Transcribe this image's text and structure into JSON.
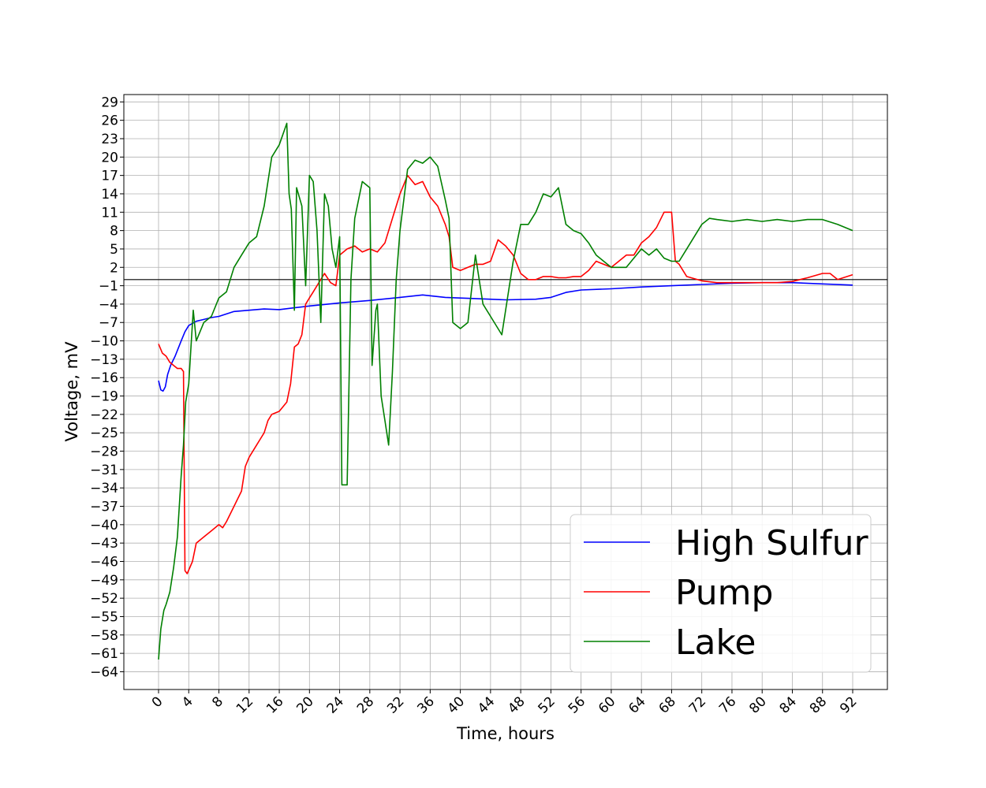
{
  "chart_data": {
    "type": "line",
    "title": "",
    "xlabel": "Time, hours",
    "ylabel": "Voltage, mV",
    "xlim": [
      -4.6,
      96.6
    ],
    "ylim": [
      -66.9,
      30.2
    ],
    "x_ticks": [
      "0",
      "4",
      "8",
      "12",
      "16",
      "20",
      "24",
      "28",
      "32",
      "36",
      "40",
      "44",
      "48",
      "52",
      "56",
      "60",
      "64",
      "68",
      "72",
      "76",
      "80",
      "84",
      "88",
      "92"
    ],
    "y_ticks": [
      "29",
      "26",
      "23",
      "20",
      "17",
      "14",
      "11",
      "8",
      "5",
      "2",
      "−1",
      "−4",
      "−7",
      "−10",
      "−13",
      "−16",
      "−19",
      "−22",
      "−25",
      "−28",
      "−31",
      "−34",
      "−37",
      "−40",
      "−43",
      "−46",
      "−49",
      "−52",
      "−55",
      "−58",
      "−61",
      "−64"
    ],
    "grid": true,
    "reference_line_y": 0,
    "legend": {
      "position": "bottom-right"
    },
    "series": [
      {
        "name": "High Sulfur",
        "color": "#0000ff",
        "points": [
          [
            0,
            -16.5
          ],
          [
            0.3,
            -18
          ],
          [
            0.6,
            -18.2
          ],
          [
            0.9,
            -17.5
          ],
          [
            1.2,
            -15.5
          ],
          [
            1.6,
            -14
          ],
          [
            2.2,
            -12.5
          ],
          [
            3,
            -10
          ],
          [
            3.5,
            -8.5
          ],
          [
            4,
            -7.5
          ],
          [
            5,
            -6.8
          ],
          [
            6,
            -6.5
          ],
          [
            7,
            -6.2
          ],
          [
            8,
            -6
          ],
          [
            9,
            -5.6
          ],
          [
            10,
            -5.2
          ],
          [
            12,
            -5.0
          ],
          [
            14,
            -4.8
          ],
          [
            16,
            -4.9
          ],
          [
            18,
            -4.6
          ],
          [
            20,
            -4.3
          ],
          [
            24,
            -3.8
          ],
          [
            28,
            -3.4
          ],
          [
            32,
            -2.9
          ],
          [
            35,
            -2.5
          ],
          [
            38,
            -2.9
          ],
          [
            42,
            -3.1
          ],
          [
            46,
            -3.3
          ],
          [
            50,
            -3.2
          ],
          [
            52,
            -2.9
          ],
          [
            54,
            -2.1
          ],
          [
            56,
            -1.7
          ],
          [
            60,
            -1.5
          ],
          [
            64,
            -1.2
          ],
          [
            68,
            -1.0
          ],
          [
            72,
            -0.8
          ],
          [
            76,
            -0.6
          ],
          [
            80,
            -0.5
          ],
          [
            84,
            -0.5
          ],
          [
            88,
            -0.7
          ],
          [
            92,
            -0.9
          ]
        ]
      },
      {
        "name": "Pump",
        "color": "#ff0000",
        "points": [
          [
            0,
            -10.5
          ],
          [
            0.5,
            -12
          ],
          [
            1,
            -12.5
          ],
          [
            1.5,
            -13.5
          ],
          [
            2,
            -14
          ],
          [
            2.5,
            -14.5
          ],
          [
            3,
            -14.5
          ],
          [
            3.3,
            -15
          ],
          [
            3.5,
            -47.5
          ],
          [
            3.8,
            -48
          ],
          [
            4.5,
            -46
          ],
          [
            5,
            -43
          ],
          [
            6,
            -42
          ],
          [
            7,
            -41
          ],
          [
            8,
            -40
          ],
          [
            8.5,
            -40.5
          ],
          [
            9,
            -39.5
          ],
          [
            10,
            -37
          ],
          [
            11,
            -34.5
          ],
          [
            11.5,
            -30.5
          ],
          [
            12,
            -29
          ],
          [
            13,
            -27
          ],
          [
            13.5,
            -26
          ],
          [
            14,
            -25
          ],
          [
            14.5,
            -23
          ],
          [
            15,
            -22
          ],
          [
            16,
            -21.5
          ],
          [
            17,
            -20
          ],
          [
            17.5,
            -17
          ],
          [
            18,
            -11
          ],
          [
            18.5,
            -10.5
          ],
          [
            19,
            -9
          ],
          [
            19.5,
            -4
          ],
          [
            20,
            -3
          ],
          [
            20.5,
            -2
          ],
          [
            21,
            -1
          ],
          [
            22,
            1
          ],
          [
            22.8,
            -0.5
          ],
          [
            23.5,
            -1
          ],
          [
            24,
            4
          ],
          [
            25,
            5
          ],
          [
            26,
            5.5
          ],
          [
            27,
            4.5
          ],
          [
            28,
            5
          ],
          [
            29,
            4.5
          ],
          [
            30,
            6
          ],
          [
            31,
            10
          ],
          [
            32,
            14
          ],
          [
            33,
            17
          ],
          [
            34,
            15.5
          ],
          [
            35,
            16
          ],
          [
            36,
            13.5
          ],
          [
            37,
            12
          ],
          [
            38,
            9
          ],
          [
            38.5,
            7
          ],
          [
            39,
            2
          ],
          [
            40,
            1.5
          ],
          [
            41,
            2
          ],
          [
            42,
            2.5
          ],
          [
            43,
            2.5
          ],
          [
            44,
            3
          ],
          [
            45,
            6.5
          ],
          [
            46,
            5.5
          ],
          [
            47,
            4
          ],
          [
            48,
            1
          ],
          [
            49,
            0
          ],
          [
            50,
            0
          ],
          [
            51,
            0.5
          ],
          [
            52,
            0.5
          ],
          [
            53,
            0.3
          ],
          [
            54,
            0.3
          ],
          [
            55,
            0.5
          ],
          [
            56,
            0.5
          ],
          [
            57,
            1.5
          ],
          [
            58,
            3
          ],
          [
            59,
            2.5
          ],
          [
            60,
            2
          ],
          [
            61,
            3
          ],
          [
            62,
            4
          ],
          [
            63,
            4
          ],
          [
            64,
            6
          ],
          [
            65,
            7
          ],
          [
            66,
            8.5
          ],
          [
            67,
            11
          ],
          [
            68,
            11
          ],
          [
            68.5,
            3
          ],
          [
            69,
            2.5
          ],
          [
            70,
            0.5
          ],
          [
            72,
            -0.2
          ],
          [
            74,
            -0.5
          ],
          [
            76,
            -0.5
          ],
          [
            78,
            -0.5
          ],
          [
            80,
            -0.5
          ],
          [
            82,
            -0.5
          ],
          [
            84,
            -0.3
          ],
          [
            86,
            0.3
          ],
          [
            88,
            1
          ],
          [
            89,
            1
          ],
          [
            90,
            0
          ],
          [
            92,
            0.8
          ]
        ]
      },
      {
        "name": "Lake",
        "color": "#008000",
        "points": [
          [
            0,
            -62
          ],
          [
            0.3,
            -57
          ],
          [
            0.7,
            -54
          ],
          [
            1,
            -53
          ],
          [
            1.5,
            -51
          ],
          [
            2,
            -47
          ],
          [
            2.5,
            -42
          ],
          [
            3,
            -32
          ],
          [
            3.3,
            -27
          ],
          [
            3.6,
            -20
          ],
          [
            4,
            -17
          ],
          [
            4.3,
            -11
          ],
          [
            4.6,
            -5
          ],
          [
            5,
            -10
          ],
          [
            6,
            -7
          ],
          [
            7,
            -6
          ],
          [
            8,
            -3
          ],
          [
            9,
            -2
          ],
          [
            10,
            2
          ],
          [
            11,
            4
          ],
          [
            12,
            6
          ],
          [
            13,
            7
          ],
          [
            14,
            12
          ],
          [
            15,
            20
          ],
          [
            16,
            22
          ],
          [
            17,
            25.5
          ],
          [
            17.3,
            14
          ],
          [
            17.6,
            11.5
          ],
          [
            18,
            -5
          ],
          [
            18.3,
            15
          ],
          [
            19,
            12
          ],
          [
            19.5,
            -1
          ],
          [
            20,
            17
          ],
          [
            20.5,
            16
          ],
          [
            21,
            8
          ],
          [
            21.5,
            -7
          ],
          [
            22,
            14
          ],
          [
            22.5,
            12
          ],
          [
            23,
            5
          ],
          [
            23.5,
            2
          ],
          [
            24,
            7
          ],
          [
            24.3,
            -33.5
          ],
          [
            25,
            -33.5
          ],
          [
            25.5,
            0
          ],
          [
            26,
            10
          ],
          [
            27,
            16
          ],
          [
            28,
            15
          ],
          [
            28.3,
            -14
          ],
          [
            28.8,
            -5
          ],
          [
            29,
            -4
          ],
          [
            29.5,
            -19
          ],
          [
            30,
            -23
          ],
          [
            30.5,
            -27
          ],
          [
            31,
            -15
          ],
          [
            31.5,
            0
          ],
          [
            32,
            8
          ],
          [
            33,
            18
          ],
          [
            34,
            19.5
          ],
          [
            35,
            19
          ],
          [
            36,
            20
          ],
          [
            37,
            18.5
          ],
          [
            38,
            13
          ],
          [
            38.5,
            10
          ],
          [
            39,
            -7
          ],
          [
            40,
            -8
          ],
          [
            41,
            -7
          ],
          [
            42,
            4
          ],
          [
            43,
            -4
          ],
          [
            44,
            -6
          ],
          [
            45,
            -8
          ],
          [
            45.5,
            -9
          ],
          [
            46,
            -5
          ],
          [
            47,
            3
          ],
          [
            48,
            9
          ],
          [
            49,
            9
          ],
          [
            50,
            11
          ],
          [
            51,
            14
          ],
          [
            52,
            13.5
          ],
          [
            53,
            15
          ],
          [
            54,
            9
          ],
          [
            55,
            8
          ],
          [
            56,
            7.5
          ],
          [
            57,
            6
          ],
          [
            58,
            4
          ],
          [
            59,
            3
          ],
          [
            60,
            2
          ],
          [
            62,
            2
          ],
          [
            64,
            5
          ],
          [
            65,
            4
          ],
          [
            66,
            5
          ],
          [
            67,
            3.5
          ],
          [
            68,
            3
          ],
          [
            69,
            3
          ],
          [
            70,
            5
          ],
          [
            71,
            7
          ],
          [
            72,
            9
          ],
          [
            73,
            10
          ],
          [
            74,
            9.8
          ],
          [
            76,
            9.5
          ],
          [
            78,
            9.8
          ],
          [
            80,
            9.5
          ],
          [
            82,
            9.8
          ],
          [
            84,
            9.5
          ],
          [
            86,
            9.8
          ],
          [
            88,
            9.8
          ],
          [
            90,
            9
          ],
          [
            92,
            8
          ]
        ]
      }
    ]
  }
}
